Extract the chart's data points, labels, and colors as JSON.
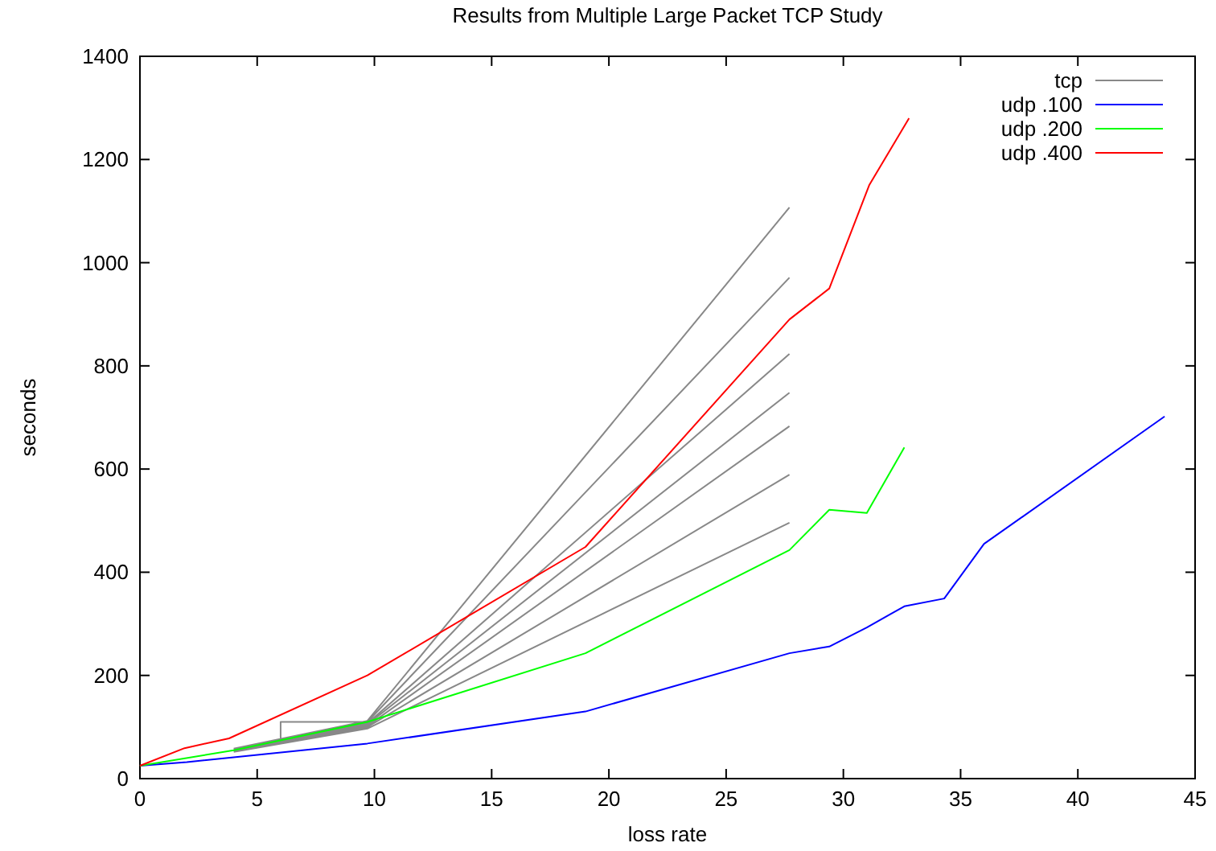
{
  "chart_data": {
    "type": "line",
    "title": "Results from Multiple Large Packet TCP Study",
    "xlabel": "loss rate",
    "ylabel": "seconds",
    "xlim": [
      0,
      45
    ],
    "xticks": [
      0,
      5,
      10,
      15,
      20,
      25,
      30,
      35,
      40,
      45
    ],
    "ylim": [
      0,
      1400
    ],
    "yticks": [
      0,
      200,
      400,
      600,
      800,
      1000,
      1200,
      1400
    ],
    "grid": false,
    "legend": "top right",
    "marker": "none",
    "line_style": "solid",
    "series": [
      {
        "name": "tcp",
        "color": "#888888",
        "x": [
          4,
          9.7,
          27.7,
          null,
          4,
          9.7,
          27.7,
          null,
          4,
          9.7,
          27.7,
          null,
          4,
          9.7,
          27.7,
          null,
          4,
          9.7,
          27.7,
          null,
          4,
          9.7,
          27.7,
          null,
          4,
          9.7,
          27.7,
          null,
          6,
          6,
          9.7
        ],
        "values": [
          58,
          112,
          1107,
          null,
          57,
          110,
          971,
          null,
          56,
          107,
          823,
          null,
          55,
          105,
          748,
          null,
          54,
          102,
          683,
          null,
          53,
          100,
          589,
          null,
          52,
          97,
          496,
          null,
          75,
          110,
          110
        ]
      },
      {
        "name": "udp .100",
        "color": "#0000ff",
        "x": [
          0,
          2,
          9.7,
          19,
          27.7,
          29.4,
          31,
          32.6,
          34.3,
          36,
          43.7
        ],
        "values": [
          25,
          32,
          68,
          130,
          243,
          256,
          293,
          334,
          349,
          455,
          702
        ]
      },
      {
        "name": "udp .200",
        "color": "#00ff00",
        "x": [
          0,
          4,
          9.7,
          19,
          27.7,
          29.4,
          31,
          32.6
        ],
        "values": [
          25,
          55,
          110,
          243,
          443,
          521,
          515,
          642
        ]
      },
      {
        "name": "udp .400",
        "color": "#ff0000",
        "x": [
          0,
          1.9,
          3.8,
          9.7,
          19,
          27.7,
          29.4,
          31.1,
          32.8
        ],
        "values": [
          25,
          59,
          78,
          200,
          449,
          890,
          950,
          1150,
          1280
        ]
      }
    ]
  }
}
